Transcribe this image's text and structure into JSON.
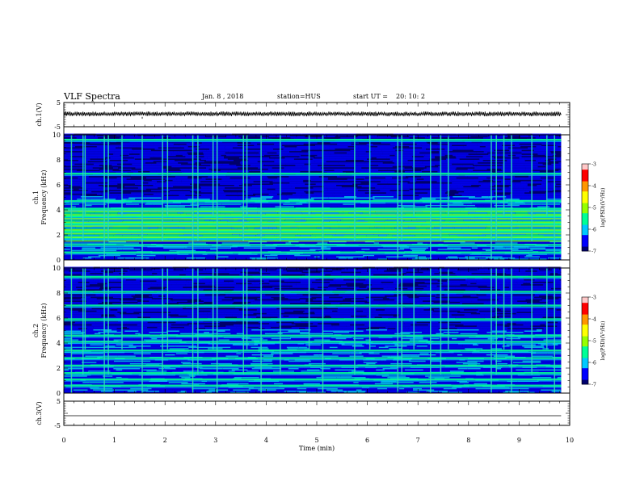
{
  "header": {
    "title": "VLF Spectra",
    "date": "Jan. 8 , 2018",
    "station": "station=HUS",
    "start_label": "start UT =",
    "start_value": "20: 10: 2"
  },
  "colors": {
    "waveform": "#000000",
    "colormap": [
      "#00006e",
      "#0000ff",
      "#00c8ff",
      "#00ff96",
      "#96ff00",
      "#ffff00",
      "#ff9600",
      "#ff0000",
      "#ffc8c8"
    ],
    "spectrogram_background": "#000060"
  },
  "chart_data": [
    {
      "type": "line",
      "name": "channel-1-waveform",
      "ylabel": "ch.1(V)",
      "ylim": [
        -5,
        5
      ],
      "yticks": [
        "5",
        "-5"
      ],
      "x_range_min": [
        0,
        9.83
      ],
      "approx_level_v": 0.3,
      "approx_amplitude_v": 1.0
    },
    {
      "type": "heatmap",
      "name": "channel-1-spectrogram",
      "ylabel": "ch.1 Frequency (kHz)",
      "ylim": [
        0,
        10
      ],
      "yticks": [
        "0",
        "2",
        "4",
        "6",
        "8",
        "10"
      ],
      "x_range_min": [
        0,
        9.83
      ],
      "colorbar": {
        "label": "log(PSD)(V²/Hz)",
        "range": [
          -7,
          -3
        ],
        "ticks": [
          "-3",
          "-4",
          "-5",
          "-6",
          "-7"
        ]
      },
      "horizontal_lines_khz": [
        0.6,
        1.2,
        1.8,
        2.3,
        2.9,
        3.5,
        4.1,
        4.7,
        6.9,
        9.6
      ],
      "strong_bands_khz": [
        [
          1.5,
          4.1
        ]
      ],
      "vertical_spikes_min": [
        0.15,
        0.38,
        0.42,
        0.8,
        0.88,
        1.15,
        1.55,
        1.95,
        2.05,
        2.55,
        2.65,
        2.95,
        3.03,
        3.55,
        3.62,
        3.9,
        4.28,
        4.85,
        5.12,
        5.75,
        6.05,
        6.6,
        6.68,
        6.92,
        7.25,
        7.45,
        7.6,
        8.45,
        8.55,
        8.7,
        8.85,
        9.25,
        9.55,
        9.7
      ]
    },
    {
      "type": "heatmap",
      "name": "channel-2-spectrogram",
      "ylabel": "ch.2 Frequency (kHz)",
      "ylim": [
        0,
        10
      ],
      "yticks": [
        "0",
        "2",
        "4",
        "6",
        "8",
        "10"
      ],
      "x_range_min": [
        0,
        9.83
      ],
      "colorbar": {
        "label": "log(PSD)(V²/Hz)",
        "range": [
          -7,
          -3
        ],
        "ticks": [
          "-3",
          "-4",
          "-5",
          "-6",
          "-7"
        ]
      },
      "horizontal_lines_khz": [
        0.6,
        1.1,
        1.6,
        2.2,
        2.8,
        3.4,
        4.1,
        4.6,
        5.9,
        7.0,
        8.1,
        9.3
      ],
      "vertical_spikes_min": [
        0.15,
        0.38,
        0.42,
        0.8,
        0.88,
        1.15,
        1.55,
        1.95,
        2.05,
        2.55,
        2.65,
        2.95,
        3.03,
        3.55,
        3.62,
        3.9,
        4.28,
        4.85,
        5.12,
        5.75,
        6.05,
        6.6,
        6.68,
        6.92,
        7.25,
        7.45,
        7.6,
        8.45,
        8.55,
        8.7,
        8.85,
        9.25,
        9.55,
        9.7
      ]
    },
    {
      "type": "line",
      "name": "channel-3-waveform",
      "ylabel": "ch.3(V)",
      "ylim": [
        -5,
        5
      ],
      "yticks": [
        "5",
        "-5"
      ],
      "x_range_min": [
        0,
        9.83
      ],
      "approx_level_v": -1.0
    }
  ],
  "xaxis": {
    "label": "Time (min)",
    "range": [
      0,
      10
    ],
    "ticks": [
      "0",
      "1",
      "2",
      "3",
      "4",
      "5",
      "6",
      "7",
      "8",
      "9",
      "10"
    ]
  }
}
